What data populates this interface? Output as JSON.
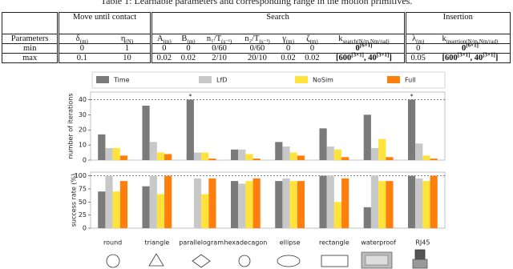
{
  "table": {
    "caption": "Table 1: Learnable parameters and corresponding range in the motion primitives.",
    "group_headers": [
      "Move until contact",
      "Search",
      "Insertion"
    ],
    "headers": [
      "Parameters",
      [
        {
          "text": "δ",
          "sub": "(m)"
        }
      ],
      [
        {
          "text": "η",
          "sub": "(N)"
        }
      ],
      [
        {
          "text": "A",
          "sub": "(m)"
        }
      ],
      [
        {
          "text": "B",
          "sub": "(m)"
        }
      ],
      [
        {
          "text": "n₁/T",
          "sub": "(s⁻¹)"
        }
      ],
      [
        {
          "text": "n₂/T",
          "sub": "(s⁻¹)"
        }
      ],
      [
        {
          "text": "γ",
          "sub": "(m)"
        }
      ],
      [
        {
          "text": "ζ",
          "sub": "(m)"
        }
      ],
      [
        {
          "text": "k",
          "sub": "search(N/m,Nm/rad)"
        }
      ],
      [
        {
          "text": "λ",
          "sub": "(m)"
        }
      ],
      [
        {
          "text": "k",
          "sub": "insertion(N/m,Nm/rad)"
        }
      ]
    ],
    "rows": [
      [
        "min",
        "0",
        "1",
        "0",
        "0",
        "0/60",
        "0/60",
        "0",
        "0",
        [
          {
            "text": "0",
            "sup": "[6×1]"
          }
        ],
        "0",
        [
          {
            "text": "0",
            "sup": "[6×1]"
          }
        ]
      ],
      [
        "max",
        "0.1",
        "10",
        "0.02",
        "0.02",
        "2/10",
        "20/10",
        "0.02",
        "0.02",
        [
          {
            "text": "[600",
            "sup": "[3×1]"
          },
          {
            "text": ", 40",
            "sup": "[3×1]"
          },
          {
            "text": "]"
          }
        ],
        "0.05",
        [
          {
            "text": "[600",
            "sup": "[3×1]"
          },
          {
            "text": ", 40",
            "sup": "[3×1]"
          },
          {
            "text": "]"
          }
        ]
      ]
    ]
  },
  "chart_data": [
    {
      "type": "bar",
      "y_label": "number of iterations",
      "ylim": [
        0,
        45
      ],
      "yticks": [
        0,
        10,
        20,
        30,
        40
      ],
      "hline": 40,
      "annotations": [
        {
          "text": "*",
          "series": "Time",
          "category": "parallelogram"
        },
        {
          "text": "*",
          "series": "Time",
          "category": "RJ45"
        }
      ],
      "series": [
        {
          "name": "Time",
          "color": "#7a7a7a",
          "values": [
            17,
            36,
            40,
            7,
            12,
            21,
            30,
            40
          ]
        },
        {
          "name": "LfD",
          "color": "#c8c8c8",
          "values": [
            8,
            12,
            5,
            7,
            9,
            9,
            8,
            11
          ]
        },
        {
          "name": "NoSim",
          "color": "#ffe23a",
          "values": [
            8,
            5,
            5,
            4,
            5,
            7,
            14,
            3
          ]
        },
        {
          "name": "Full",
          "color": "#ff7f0e",
          "values": [
            3,
            4,
            1,
            1,
            3,
            2,
            2,
            1
          ]
        }
      ]
    },
    {
      "type": "bar",
      "y_label": "success rate (%)",
      "ylim": [
        0,
        107
      ],
      "yticks": [
        0,
        25,
        50,
        75,
        100
      ],
      "hline": 100,
      "categories": [
        "round",
        "triangle",
        "parallelogram",
        "hexadecagon",
        "ellipse",
        "rectangle",
        "waterproof",
        "RJ45"
      ],
      "series": [
        {
          "color": "#7a7a7a",
          "values": [
            70,
            80,
            0,
            90,
            90,
            100,
            40,
            100
          ]
        },
        {
          "color": "#c8c8c8",
          "values": [
            100,
            100,
            95,
            85,
            95,
            100,
            100,
            95
          ]
        },
        {
          "color": "#ffe23a",
          "values": [
            70,
            65,
            65,
            90,
            90,
            50,
            90,
            90
          ]
        },
        {
          "color": "#ff7f0e",
          "values": [
            90,
            100,
            95,
            95,
            90,
            95,
            90,
            100
          ]
        }
      ]
    }
  ]
}
